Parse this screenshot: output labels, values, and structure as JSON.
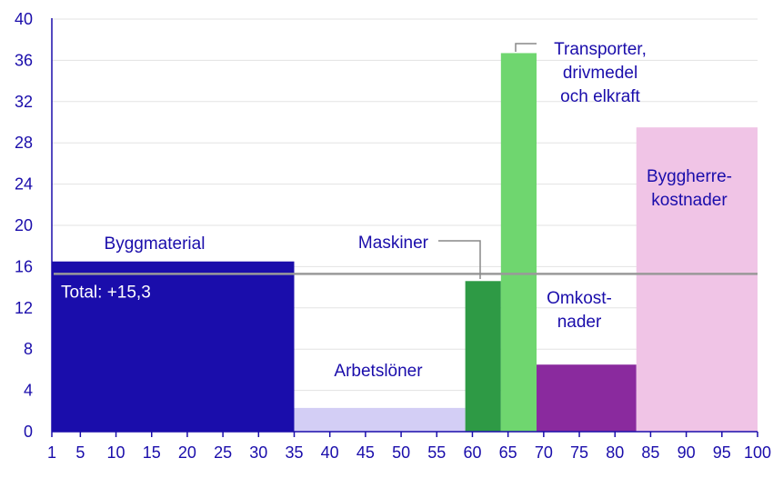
{
  "chart_data": {
    "type": "bar",
    "title": "",
    "xlabel": "",
    "ylabel": "",
    "variable_width": true,
    "xlim": [
      1,
      100
    ],
    "ylim": [
      0,
      40
    ],
    "x_ticks": [
      1,
      5,
      10,
      15,
      20,
      25,
      30,
      35,
      40,
      45,
      50,
      55,
      60,
      65,
      70,
      75,
      80,
      85,
      90,
      95,
      100
    ],
    "y_ticks": [
      0,
      4,
      8,
      12,
      16,
      20,
      24,
      28,
      32,
      36,
      40
    ],
    "grid": "horizontal",
    "bars": [
      {
        "label_lines": [
          "Byggmaterial"
        ],
        "x_start": 1,
        "x_end": 35,
        "value": 16.5,
        "color": "#1a0dab"
      },
      {
        "label_lines": [
          "Arbetslöner"
        ],
        "x_start": 35,
        "x_end": 59,
        "value": 2.3,
        "color": "#d3cef5"
      },
      {
        "label_lines": [
          "Maskiner"
        ],
        "x_start": 59,
        "x_end": 64,
        "value": 14.6,
        "color": "#2e9a45"
      },
      {
        "label_lines": [
          "Transporter,",
          "drivmedel",
          "och elkraft"
        ],
        "x_start": 64,
        "x_end": 69,
        "value": 36.7,
        "color": "#6fd66f"
      },
      {
        "label_lines": [
          "Omkost-",
          "nader"
        ],
        "x_start": 69,
        "x_end": 83,
        "value": 6.5,
        "color": "#8a2a9e"
      },
      {
        "label_lines": [
          "Byggherre-",
          "kostnader"
        ],
        "x_start": 83,
        "x_end": 100,
        "value": 29.5,
        "color": "#f0c4e6"
      }
    ],
    "reference_line": {
      "label": "Total: +15,3",
      "value": 15.3,
      "color": "#999999"
    }
  }
}
